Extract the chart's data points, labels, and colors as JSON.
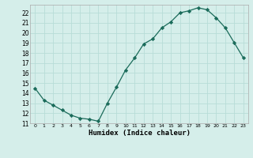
{
  "x": [
    0,
    1,
    2,
    3,
    4,
    5,
    6,
    7,
    8,
    9,
    10,
    11,
    12,
    13,
    14,
    15,
    16,
    17,
    18,
    19,
    20,
    21,
    22,
    23
  ],
  "y": [
    14.5,
    13.3,
    12.8,
    12.3,
    11.8,
    11.5,
    11.4,
    11.2,
    13.0,
    14.6,
    16.3,
    17.5,
    18.9,
    19.4,
    20.5,
    21.1,
    22.0,
    22.2,
    22.5,
    22.3,
    21.5,
    20.5,
    19.0,
    17.5
  ],
  "line_color": "#1a6b5a",
  "marker_color": "#1a6b5a",
  "bg_color": "#d5eeea",
  "grid_color": "#b8ddd8",
  "xlabel": "Humidex (Indice chaleur)",
  "ylim": [
    11,
    22.8
  ],
  "xlim": [
    -0.5,
    23.5
  ],
  "yticks": [
    11,
    12,
    13,
    14,
    15,
    16,
    17,
    18,
    19,
    20,
    21,
    22
  ],
  "xticks": [
    0,
    1,
    2,
    3,
    4,
    5,
    6,
    7,
    8,
    9,
    10,
    11,
    12,
    13,
    14,
    15,
    16,
    17,
    18,
    19,
    20,
    21,
    22,
    23
  ]
}
